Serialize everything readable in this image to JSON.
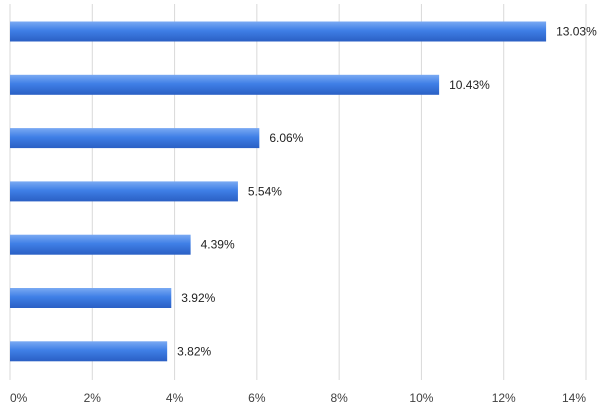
{
  "chart_data": {
    "type": "bar",
    "orientation": "horizontal",
    "title": "",
    "xlabel": "",
    "ylabel": "",
    "categories": [
      "",
      "",
      "",
      "",
      "",
      "",
      ""
    ],
    "values": [
      13.03,
      10.43,
      6.06,
      5.54,
      4.39,
      3.92,
      3.82
    ],
    "value_labels": [
      "13.03%",
      "10.43%",
      "6.06%",
      "5.54%",
      "4.39%",
      "3.92%",
      "3.82%"
    ],
    "xlim": [
      0,
      14
    ],
    "x_ticks": [
      0,
      2,
      4,
      6,
      8,
      10,
      12,
      14
    ],
    "x_tick_labels": [
      "0%",
      "2%",
      "4%",
      "6%",
      "8%",
      "10%",
      "12%",
      "14%"
    ],
    "grid": true,
    "legend": "none",
    "bar_color": "#3f7fe6",
    "bar_color_light": "#7aaaf3",
    "bar_color_dark": "#2a5fc4"
  }
}
